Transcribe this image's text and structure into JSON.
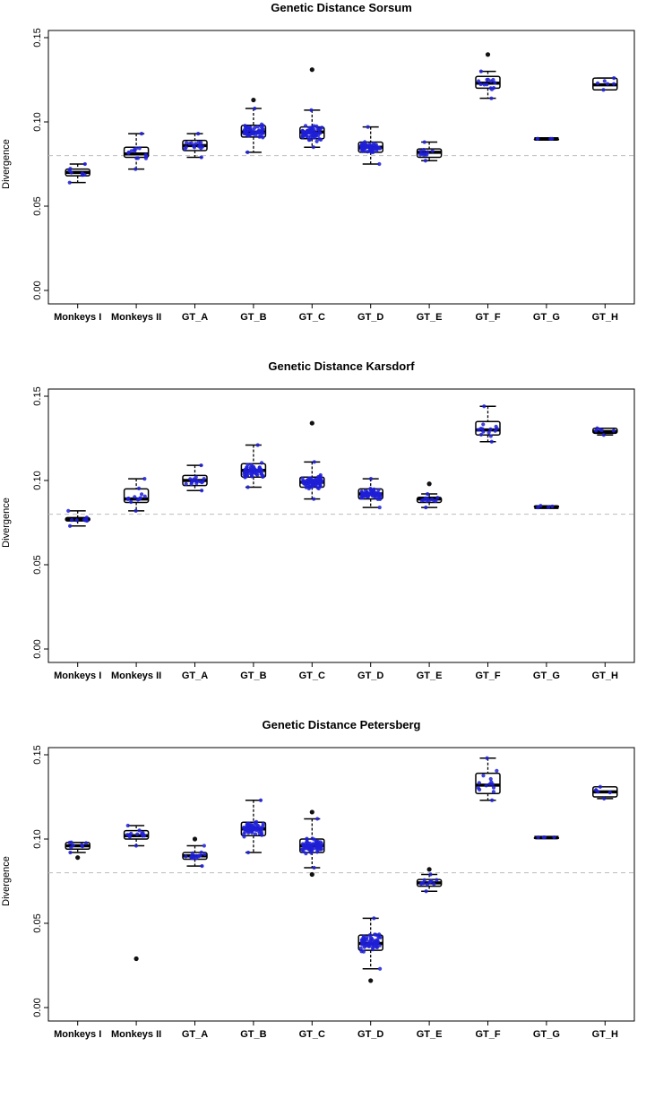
{
  "chart_data": [
    {
      "type": "box",
      "title": "Genetic Distance Sorsum",
      "ylabel": "Divergence",
      "ylim": [
        0,
        0.15
      ],
      "yticks": [
        "0.00",
        "0.05",
        "0.10",
        "0.15"
      ],
      "reference_line": 0.08,
      "categories": [
        "Monkeys I",
        "Monkeys II",
        "GT_A",
        "GT_B",
        "GT_C",
        "GT_D",
        "GT_E",
        "GT_F",
        "GT_G",
        "GT_H"
      ],
      "boxes": [
        {
          "min": 0.064,
          "q1": 0.068,
          "median": 0.07,
          "q3": 0.072,
          "max": 0.075,
          "outliers": []
        },
        {
          "min": 0.072,
          "q1": 0.079,
          "median": 0.081,
          "q3": 0.085,
          "max": 0.093,
          "outliers": []
        },
        {
          "min": 0.079,
          "q1": 0.083,
          "median": 0.086,
          "q3": 0.089,
          "max": 0.093,
          "outliers": []
        },
        {
          "min": 0.082,
          "q1": 0.091,
          "median": 0.094,
          "q3": 0.098,
          "max": 0.108,
          "outliers": [
            0.113
          ]
        },
        {
          "min": 0.085,
          "q1": 0.09,
          "median": 0.094,
          "q3": 0.097,
          "max": 0.107,
          "outliers": [
            0.131
          ]
        },
        {
          "min": 0.075,
          "q1": 0.082,
          "median": 0.085,
          "q3": 0.088,
          "max": 0.097,
          "outliers": []
        },
        {
          "min": 0.077,
          "q1": 0.079,
          "median": 0.082,
          "q3": 0.084,
          "max": 0.088,
          "outliers": []
        },
        {
          "min": 0.114,
          "q1": 0.12,
          "median": 0.123,
          "q3": 0.127,
          "max": 0.13,
          "outliers": [
            0.14
          ]
        },
        {
          "min": 0.09,
          "q1": 0.09,
          "median": 0.09,
          "q3": 0.09,
          "max": 0.09,
          "outliers": []
        },
        {
          "min": 0.119,
          "q1": 0.119,
          "median": 0.122,
          "q3": 0.126,
          "max": 0.126,
          "outliers": []
        }
      ]
    },
    {
      "type": "box",
      "title": "Genetic Distance Karsdorf",
      "ylabel": "Divergence",
      "ylim": [
        0,
        0.15
      ],
      "yticks": [
        "0.00",
        "0.05",
        "0.10",
        "0.15"
      ],
      "reference_line": 0.08,
      "categories": [
        "Monkeys I",
        "Monkeys II",
        "GT_A",
        "GT_B",
        "GT_C",
        "GT_D",
        "GT_E",
        "GT_F",
        "GT_G",
        "GT_H"
      ],
      "boxes": [
        {
          "min": 0.073,
          "q1": 0.076,
          "median": 0.077,
          "q3": 0.078,
          "max": 0.082,
          "outliers": []
        },
        {
          "min": 0.082,
          "q1": 0.087,
          "median": 0.089,
          "q3": 0.095,
          "max": 0.101,
          "outliers": []
        },
        {
          "min": 0.094,
          "q1": 0.097,
          "median": 0.1,
          "q3": 0.103,
          "max": 0.109,
          "outliers": []
        },
        {
          "min": 0.096,
          "q1": 0.102,
          "median": 0.106,
          "q3": 0.11,
          "max": 0.121,
          "outliers": []
        },
        {
          "min": 0.089,
          "q1": 0.096,
          "median": 0.099,
          "q3": 0.102,
          "max": 0.111,
          "outliers": [
            0.134
          ]
        },
        {
          "min": 0.084,
          "q1": 0.089,
          "median": 0.092,
          "q3": 0.095,
          "max": 0.101,
          "outliers": []
        },
        {
          "min": 0.084,
          "q1": 0.087,
          "median": 0.089,
          "q3": 0.09,
          "max": 0.092,
          "outliers": [
            0.098
          ]
        },
        {
          "min": 0.123,
          "q1": 0.127,
          "median": 0.13,
          "q3": 0.135,
          "max": 0.144,
          "outliers": []
        },
        {
          "min": 0.084,
          "q1": 0.084,
          "median": 0.084,
          "q3": 0.085,
          "max": 0.085,
          "outliers": []
        },
        {
          "min": 0.127,
          "q1": 0.128,
          "median": 0.129,
          "q3": 0.131,
          "max": 0.131,
          "outliers": []
        }
      ]
    },
    {
      "type": "box",
      "title": "Genetic Distance Petersberg",
      "ylabel": "Divergence",
      "ylim": [
        0,
        0.15
      ],
      "yticks": [
        "0.00",
        "0.05",
        "0.10",
        "0.15"
      ],
      "reference_line": 0.08,
      "categories": [
        "Monkeys I",
        "Monkeys II",
        "GT_A",
        "GT_B",
        "GT_C",
        "GT_D",
        "GT_E",
        "GT_F",
        "GT_G",
        "GT_H"
      ],
      "boxes": [
        {
          "min": 0.092,
          "q1": 0.094,
          "median": 0.096,
          "q3": 0.098,
          "max": 0.098,
          "outliers": [
            0.089
          ]
        },
        {
          "min": 0.096,
          "q1": 0.1,
          "median": 0.102,
          "q3": 0.105,
          "max": 0.108,
          "outliers": [
            0.029
          ]
        },
        {
          "min": 0.084,
          "q1": 0.088,
          "median": 0.09,
          "q3": 0.092,
          "max": 0.096,
          "outliers": [
            0.1
          ]
        },
        {
          "min": 0.092,
          "q1": 0.102,
          "median": 0.106,
          "q3": 0.11,
          "max": 0.123,
          "outliers": []
        },
        {
          "min": 0.083,
          "q1": 0.092,
          "median": 0.096,
          "q3": 0.1,
          "max": 0.112,
          "outliers": [
            0.079,
            0.116
          ]
        },
        {
          "min": 0.023,
          "q1": 0.034,
          "median": 0.038,
          "q3": 0.043,
          "max": 0.053,
          "outliers": [
            0.016
          ]
        },
        {
          "min": 0.069,
          "q1": 0.072,
          "median": 0.074,
          "q3": 0.076,
          "max": 0.079,
          "outliers": [
            0.082
          ]
        },
        {
          "min": 0.123,
          "q1": 0.127,
          "median": 0.132,
          "q3": 0.139,
          "max": 0.148,
          "outliers": []
        },
        {
          "min": 0.101,
          "q1": 0.101,
          "median": 0.101,
          "q3": 0.101,
          "max": 0.101,
          "outliers": []
        },
        {
          "min": 0.124,
          "q1": 0.125,
          "median": 0.128,
          "q3": 0.131,
          "max": 0.131,
          "outliers": []
        }
      ]
    }
  ],
  "colors": {
    "points": "#1f1fd6",
    "box": "#000000",
    "reference_line": "#bdbdbd"
  }
}
